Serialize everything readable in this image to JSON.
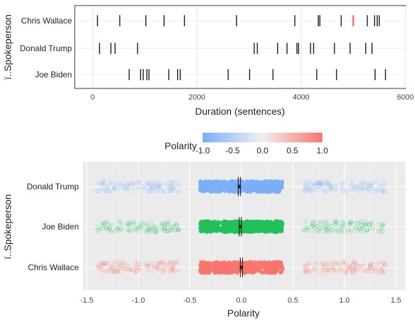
{
  "chart_data": [
    {
      "type": "scatter",
      "xlabel": "Duration (sentences)",
      "ylabel": "ï..Spokeperson",
      "xlim": [
        -150,
        600
      ],
      "xticks": [
        0,
        2000,
        4000,
        6000
      ],
      "grid": true,
      "categories": [
        "Chris Wallace",
        "Donald Trump",
        "Joe Biden"
      ],
      "series": [
        {
          "name": "Chris Wallace",
          "values": [
            90,
            520,
            1020,
            1370,
            1760,
            2760,
            3880,
            4330,
            4360,
            4770,
            5000,
            5270,
            5410,
            5460,
            5500
          ]
        },
        {
          "name": "Donald Trump",
          "values": [
            130,
            350,
            430,
            860,
            3100,
            3160,
            3550,
            3730,
            3920,
            3950,
            4180,
            4240,
            4640,
            4940,
            5240,
            5360
          ]
        },
        {
          "name": "Joe Biden",
          "values": [
            700,
            920,
            970,
            1040,
            1080,
            1460,
            1630,
            1680,
            2600,
            3010,
            3460,
            4300,
            4680,
            5420,
            5620
          ]
        }
      ],
      "highlight": {
        "series": "Chris Wallace",
        "x": 5000,
        "color": "#F8766D"
      }
    },
    {
      "type": "scatter",
      "xlabel": "Polarity",
      "ylabel": "ï..Spokeperson",
      "xlim": [
        -1.5,
        1.5
      ],
      "xticks": [
        -1.5,
        -1.0,
        -0.5,
        0.0,
        0.5,
        1.0,
        1.5
      ],
      "xtick_labels": [
        "-1.5",
        "-1.0",
        "-0.5",
        "0.0",
        "0.5",
        "1.0",
        "1.5"
      ],
      "grid": true,
      "categories": [
        "Donald Trump",
        "Joe Biden",
        "Chris Wallace"
      ],
      "series": [
        {
          "name": "Donald Trump",
          "color": "#7CAEF8",
          "clusters": [
            [
              -1.4,
              -0.6
            ],
            [
              -0.4,
              0.4
            ],
            [
              0.6,
              1.4
            ]
          ],
          "median": -0.02
        },
        {
          "name": "Joe Biden",
          "color": "#22C05A",
          "clusters": [
            [
              -1.4,
              -0.6
            ],
            [
              -0.4,
              0.4
            ],
            [
              0.6,
              1.4
            ]
          ],
          "median": -0.01
        },
        {
          "name": "Chris Wallace",
          "color": "#F8766D",
          "clusters": [
            [
              -1.4,
              -0.6
            ],
            [
              -0.4,
              0.4
            ],
            [
              0.6,
              1.4
            ]
          ],
          "median": 0.0
        }
      ],
      "legend": {
        "title": "Polarity",
        "placement": "top",
        "ticks": [
          "-1.0",
          "-0.5",
          "0.0",
          "0.5",
          "1.0"
        ],
        "colors": [
          "#7CAEF8",
          "#F0F0F0",
          "#F8766D"
        ]
      }
    }
  ]
}
